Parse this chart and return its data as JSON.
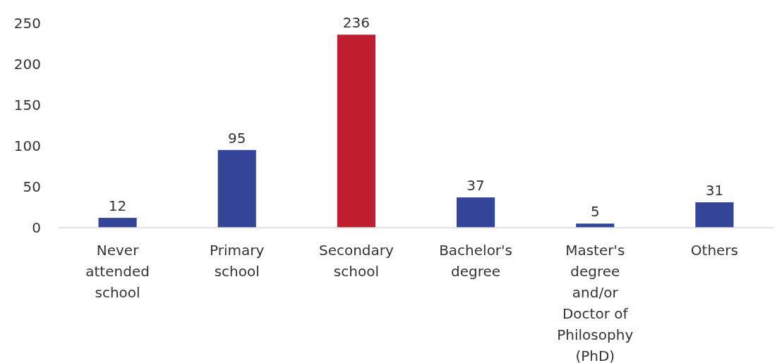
{
  "chart_data": {
    "type": "bar",
    "categories": [
      "Never attended school",
      "Primary school",
      "Secondary school",
      "Bachelor's degree",
      "Master's degree and/or Doctor of Philosophy (PhD)",
      "Others"
    ],
    "values": [
      12,
      95,
      236,
      37,
      5,
      31
    ],
    "colors": [
      "#334499",
      "#334499",
      "#be1e2d",
      "#334499",
      "#334499",
      "#334499"
    ],
    "ylim": [
      0,
      250
    ],
    "yticks": [
      0,
      50,
      100,
      150,
      200,
      250
    ],
    "grid": false,
    "data_labels": true
  }
}
